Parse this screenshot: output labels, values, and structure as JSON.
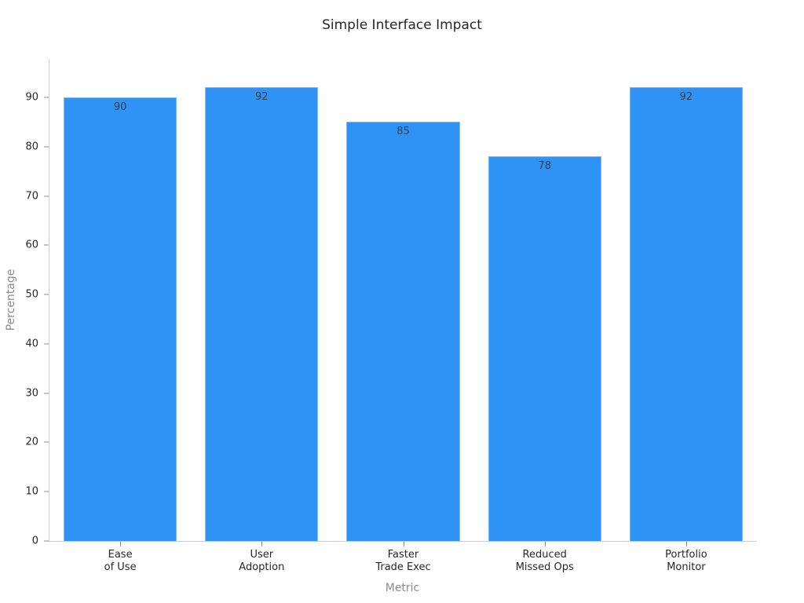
{
  "chart_data": {
    "type": "bar",
    "title": "Simple Interface Impact",
    "xlabel": "Metric",
    "ylabel": "Percentage",
    "categories": [
      "Ease\nof Use",
      "User\nAdoption",
      "Faster\nTrade Exec",
      "Reduced\nMissed Ops",
      "Portfolio\nMonitor"
    ],
    "values": [
      90,
      92,
      85,
      78,
      92
    ],
    "bar_labels": [
      "90",
      "92",
      "85",
      "78",
      "92"
    ],
    "yticks": [
      0,
      10,
      20,
      30,
      40,
      50,
      60,
      70,
      80,
      90
    ],
    "ylim": [
      0,
      97.8
    ],
    "grid": false,
    "legend_position": "none",
    "colors": {
      "bar": "#2f93f5",
      "bar_edge": "#7cbcf8",
      "axis_line": "#cccccc",
      "tick_mark": "#8c8c8c",
      "tick_label": "#262626",
      "axis_label": "#8a8a8a",
      "title": "#262626",
      "value_label": "#3c3c3c"
    }
  }
}
